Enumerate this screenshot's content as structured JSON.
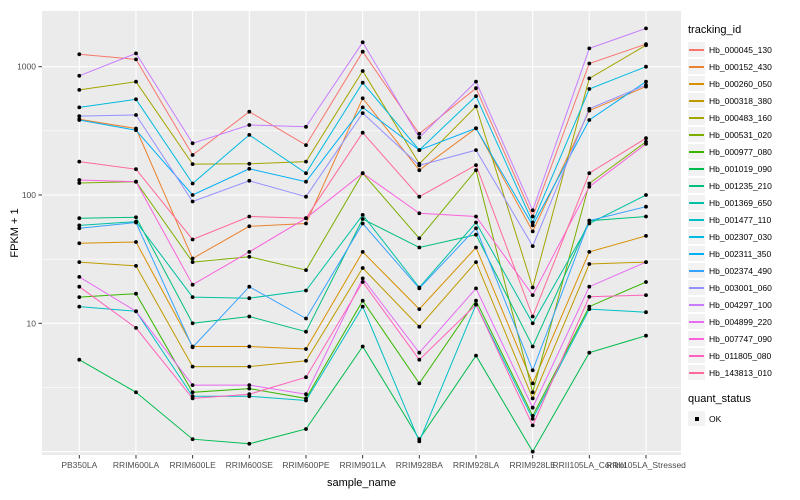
{
  "chart_data": {
    "type": "line",
    "title": "",
    "xlabel": "sample_name",
    "ylabel": "FPKM + 1",
    "yscale": "log10",
    "ylim": [
      1,
      2300
    ],
    "y_ticks": [
      1000,
      100,
      10
    ],
    "grid": "white-on-gray",
    "panel_bg": "#EBEBEB",
    "point_color": "#000000",
    "legend_position": "right",
    "legend_title": "tracking_id",
    "legend2": {
      "title": "quant_status",
      "items": [
        "OK"
      ]
    },
    "x": [
      "PB350LA",
      "RRIM600LA",
      "RRIM600LE",
      "RRIM600SE",
      "RRIM600PE",
      "RRIM901LA",
      "RRIM928BA",
      "RRIM928LA",
      "RRIM928LE",
      "RRII105LA_Control",
      "RRII105LA_Stressed"
    ],
    "series": [
      {
        "name": "Hb_000045_130",
        "color": "#F8766D",
        "values": [
          1250,
          1140,
          205,
          446,
          245,
          1310,
          300,
          680,
          68,
          1060,
          1500
        ]
      },
      {
        "name": "Hb_000152_430",
        "color": "#EA8331",
        "values": [
          390,
          330,
          32,
          57,
          60,
          567,
          156,
          331,
          52,
          455,
          700
        ]
      },
      {
        "name": "Hb_000260_050",
        "color": "#D89000",
        "values": [
          42,
          43,
          6.6,
          6.6,
          6.3,
          36,
          12.9,
          39,
          3.4,
          36,
          48
        ]
      },
      {
        "name": "Hb_000318_380",
        "color": "#C09B00",
        "values": [
          30,
          28,
          4.6,
          4.6,
          5.1,
          27,
          9.4,
          30,
          2.6,
          29,
          30
        ]
      },
      {
        "name": "Hb_000483_160",
        "color": "#A3A500",
        "values": [
          660,
          764,
          174,
          175,
          182,
          925,
          175,
          490,
          19,
          810,
          1470
        ]
      },
      {
        "name": "Hb_000531_020",
        "color": "#7CAE00",
        "values": [
          124,
          127,
          30,
          33,
          26,
          148,
          46,
          156,
          2.9,
          123,
          260
        ]
      },
      {
        "name": "Hb_000977_080",
        "color": "#39B600",
        "values": [
          16,
          17,
          2.9,
          3.1,
          2.6,
          15,
          3.4,
          15,
          1.9,
          13.5,
          21
        ]
      },
      {
        "name": "Hb_001019_090",
        "color": "#00BB4E",
        "values": [
          5.2,
          2.9,
          1.25,
          1.15,
          1.5,
          6.6,
          1.25,
          5.6,
          1.0,
          5.9,
          8
        ]
      },
      {
        "name": "Hb_001235_210",
        "color": "#00BF7D",
        "values": [
          66,
          67,
          10,
          11.3,
          8.6,
          65,
          39,
          49,
          6.6,
          63,
          68
        ]
      },
      {
        "name": "Hb_001369_650",
        "color": "#00C1A3",
        "values": [
          58,
          62,
          16,
          15.7,
          18,
          70,
          19,
          61,
          10,
          60,
          100
        ]
      },
      {
        "name": "Hb_001477_110",
        "color": "#00BFC4",
        "values": [
          13.5,
          12.4,
          2.7,
          2.7,
          2.5,
          13.5,
          1.2,
          14,
          1.8,
          12.9,
          12.2
        ]
      },
      {
        "name": "Hb_002307_030",
        "color": "#00BAE0",
        "values": [
          482,
          557,
          123,
          294,
          148,
          750,
          224,
          590,
          61,
          670,
          1000
        ]
      },
      {
        "name": "Hb_002311_350",
        "color": "#00B0F6",
        "values": [
          384,
          320,
          100,
          160,
          127,
          482,
          224,
          331,
          58,
          384,
          765
        ]
      },
      {
        "name": "Hb_002374_490",
        "color": "#35A2FF",
        "values": [
          55,
          61,
          6.5,
          19.3,
          10.9,
          60,
          18.7,
          55,
          4.3,
          63,
          81
        ]
      },
      {
        "name": "Hb_003001_060",
        "color": "#9590FF",
        "values": [
          412,
          420,
          89,
          129,
          97,
          435,
          170,
          224,
          40,
          470,
          720
        ]
      },
      {
        "name": "Hb_004297_100",
        "color": "#C77CFF",
        "values": [
          850,
          1270,
          253,
          351,
          340,
          1550,
          280,
          765,
          76,
          1390,
          1990
        ]
      },
      {
        "name": "Hb_004899_220",
        "color": "#E76BF3",
        "values": [
          23,
          12.4,
          3.3,
          3.3,
          2.8,
          22.4,
          5.9,
          18.7,
          2.2,
          19.3,
          30
        ]
      },
      {
        "name": "Hb_007747_090",
        "color": "#FA62DB",
        "values": [
          131,
          127,
          20,
          36,
          66,
          148,
          72,
          68,
          16.6,
          116,
          250
        ]
      },
      {
        "name": "Hb_011805_080",
        "color": "#FF62BC",
        "values": [
          19.3,
          9.2,
          2.6,
          2.8,
          3.8,
          21,
          5.2,
          14,
          1.6,
          16.1,
          16.6
        ]
      },
      {
        "name": "Hb_143813_010",
        "color": "#FF6A98",
        "values": [
          182,
          159,
          45,
          68,
          66,
          306,
          97,
          171,
          11.3,
          148,
          277
        ]
      }
    ]
  }
}
